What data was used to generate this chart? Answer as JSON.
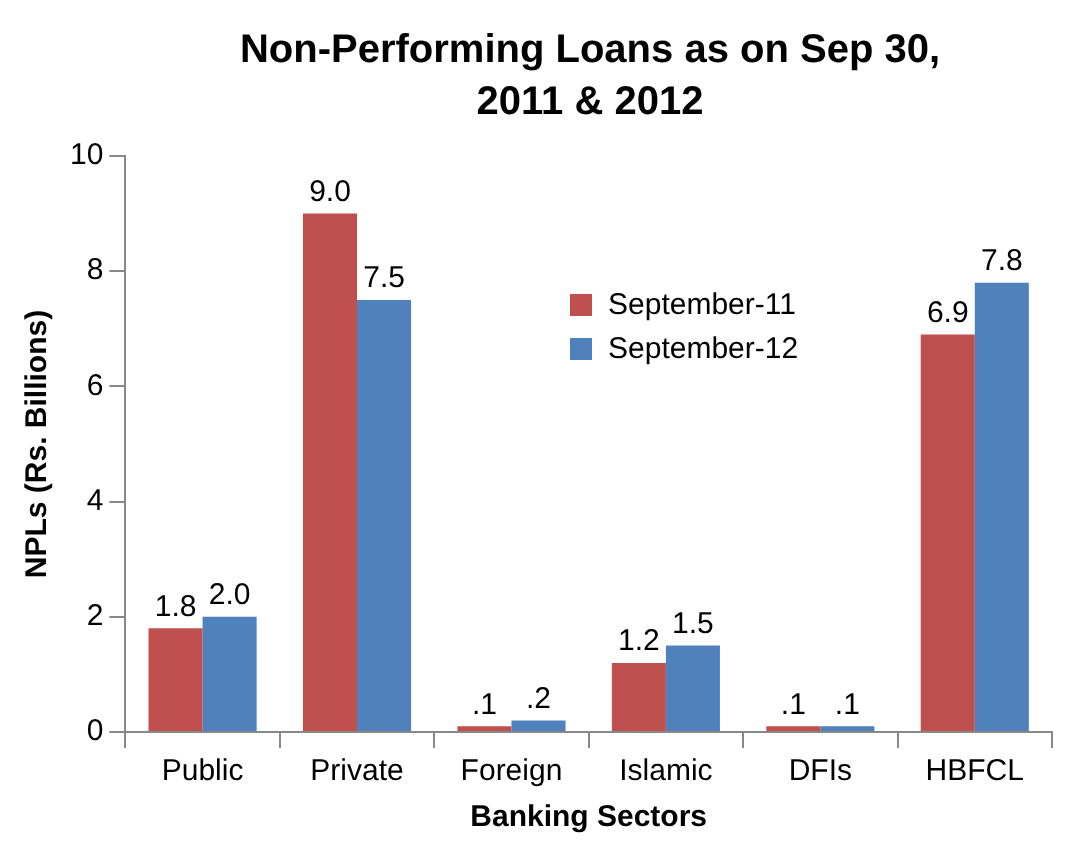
{
  "chart_data": {
    "type": "bar",
    "title": "Non-Performing Loans as on Sep 30, 2011 & 2012",
    "xlabel": "Banking Sectors",
    "ylabel": "NPLs (Rs. Billions)",
    "categories": [
      "Public",
      "Private",
      "Foreign",
      "Islamic",
      "DFIs",
      "HBFCL"
    ],
    "series": [
      {
        "name": "September-11",
        "color": "#c0504d",
        "values": [
          1.8,
          9.0,
          0.1,
          1.2,
          0.1,
          6.9
        ],
        "value_labels": [
          "1.8",
          "9.0",
          ".1",
          "1.2",
          ".1",
          "6.9"
        ]
      },
      {
        "name": "September-12",
        "color": "#4f81bd",
        "values": [
          2.0,
          7.5,
          0.2,
          1.5,
          0.1,
          7.8
        ],
        "value_labels": [
          "2.0",
          "7.5",
          ".2",
          "1.5",
          ".1",
          "7.8"
        ]
      }
    ],
    "ylim": [
      0,
      10
    ],
    "yticks": [
      0,
      2,
      4,
      6,
      8,
      10
    ],
    "grid": false,
    "legend": "top"
  }
}
